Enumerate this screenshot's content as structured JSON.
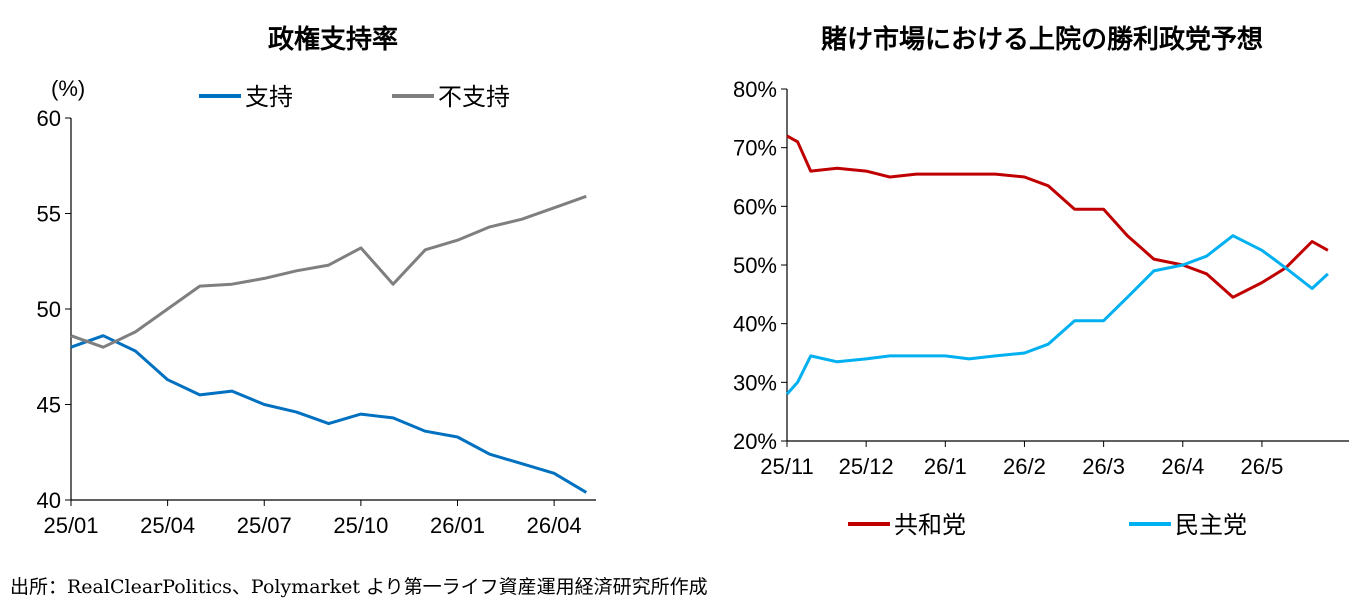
{
  "source_note": "出所：RealClearPolitics、Polymarket より第一ライフ資産運用経済研究所作成",
  "chart_data": [
    {
      "type": "line",
      "title": "政権支持率",
      "unit_label": "(%)",
      "ylim": [
        40,
        60
      ],
      "y_ticks": [
        "40",
        "45",
        "50",
        "55",
        "60"
      ],
      "x_tick_labels": [
        "25/01",
        "25/04",
        "25/07",
        "25/10",
        "26/01",
        "26/04"
      ],
      "x_range": [
        "2025/01",
        "2026/05"
      ],
      "legend_position": "top",
      "series": [
        {
          "name": "支持",
          "color": "#0070c0",
          "x": [
            "2025/01",
            "2025/02",
            "2025/03",
            "2025/04",
            "2025/05",
            "2025/06",
            "2025/07",
            "2025/08",
            "2025/09",
            "2025/10",
            "2025/11",
            "2025/12",
            "2026/01",
            "2026/02",
            "2026/03",
            "2026/04",
            "2026/05"
          ],
          "y": [
            48.0,
            48.6,
            47.8,
            46.3,
            45.5,
            45.7,
            45.0,
            44.6,
            44.0,
            44.5,
            44.3,
            43.6,
            43.3,
            42.4,
            41.9,
            41.4,
            40.4
          ]
        },
        {
          "name": "不支持",
          "color": "#7f7f7f",
          "x": [
            "2025/01",
            "2025/02",
            "2025/03",
            "2025/04",
            "2025/05",
            "2025/06",
            "2025/07",
            "2025/08",
            "2025/09",
            "2025/10",
            "2025/11",
            "2025/12",
            "2026/01",
            "2026/02",
            "2026/03",
            "2026/04",
            "2026/05"
          ],
          "y": [
            48.6,
            48.0,
            48.8,
            50.0,
            51.2,
            51.3,
            51.6,
            52.0,
            52.3,
            53.2,
            51.3,
            53.1,
            53.6,
            54.3,
            54.7,
            55.3,
            55.9
          ]
        }
      ]
    },
    {
      "type": "line",
      "title": "賭け市場における上院の勝利政党予想",
      "ylim": [
        20,
        80
      ],
      "y_ticks": [
        "20%",
        "30%",
        "40%",
        "50%",
        "60%",
        "70%",
        "80%"
      ],
      "x_tick_labels": [
        "25/11",
        "25/12",
        "26/1",
        "26/2",
        "26/3",
        "26/4",
        "26/5"
      ],
      "x_range": [
        "2025/11",
        "2026/05"
      ],
      "legend_position": "bottom",
      "series": [
        {
          "name": "共和党",
          "color": "#c00000",
          "x": [
            "2025/11/01",
            "2025/11/05",
            "2025/11/10",
            "2025/11/20",
            "2025/12/01",
            "2025/12/10",
            "2025/12/20",
            "2026/01/01",
            "2026/01/10",
            "2026/01/20",
            "2026/02/01",
            "2026/02/10",
            "2026/02/20",
            "2026/03/01",
            "2026/03/10",
            "2026/03/20",
            "2026/04/01",
            "2026/04/10",
            "2026/04/20",
            "2026/05/01",
            "2026/05/10",
            "2026/05/20",
            "2026/05/26"
          ],
          "y": [
            72,
            71,
            66,
            66.5,
            66,
            65,
            65.5,
            65.5,
            65.5,
            65.5,
            65,
            63.5,
            59.5,
            59.5,
            55,
            51,
            50,
            48.5,
            44.5,
            47,
            49.5,
            54,
            52.5
          ]
        },
        {
          "name": "民主党",
          "color": "#00b0f0",
          "x": [
            "2025/11/01",
            "2025/11/05",
            "2025/11/10",
            "2025/11/20",
            "2025/12/01",
            "2025/12/10",
            "2025/12/20",
            "2026/01/01",
            "2026/01/10",
            "2026/01/20",
            "2026/02/01",
            "2026/02/10",
            "2026/02/20",
            "2026/03/01",
            "2026/03/10",
            "2026/03/20",
            "2026/04/01",
            "2026/04/10",
            "2026/04/20",
            "2026/05/01",
            "2026/05/10",
            "2026/05/20",
            "2026/05/26"
          ],
          "y": [
            28,
            30,
            34.5,
            33.5,
            34,
            34.5,
            34.5,
            34.5,
            34,
            34.5,
            35,
            36.5,
            40.5,
            40.5,
            44.5,
            49,
            50,
            51.5,
            55,
            52.5,
            49.5,
            46,
            48.5
          ]
        }
      ]
    }
  ]
}
